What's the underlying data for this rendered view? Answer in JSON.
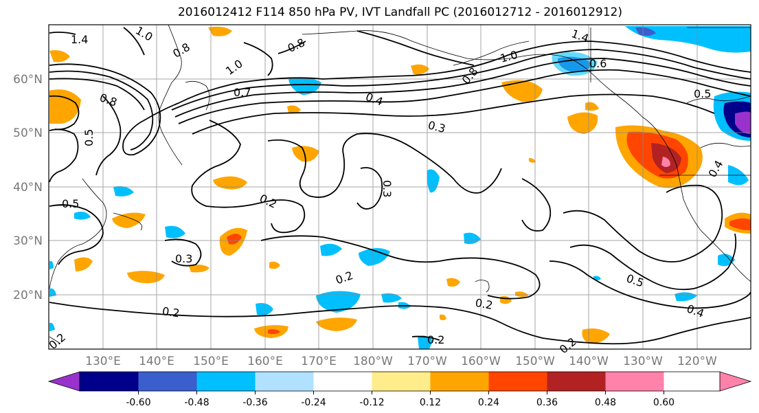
{
  "title": "2016012412 F114 850 hPa PV, IVT Landfall PC (2016012712 - 2016012912)",
  "lat_labels": [
    "60°N",
    "50°N",
    "40°N",
    "30°N",
    "20°N"
  ],
  "lon_labels": [
    "130°E",
    "140°E",
    "150°E",
    "160°E",
    "170°E",
    "180°W",
    "170°W",
    "160°W",
    "150°W",
    "140°W",
    "130°W",
    "120°W"
  ],
  "contour_labels": [
    "1.4",
    "1.0",
    "0.8",
    "0.8",
    "1.0",
    "0.7",
    "0.8",
    "0.5",
    "0.4",
    "0.3",
    "0.8",
    "1.0",
    "1.4",
    "0.6",
    "0.5",
    "0.3",
    "0.2",
    "0.5",
    "0.3",
    "0.2",
    "0.2",
    "0.2",
    "0.2",
    "0.5",
    "0.4",
    "0.4",
    "0.2",
    "0.2"
  ],
  "colorbar": {
    "colors": [
      "#9932cc",
      "#00008b",
      "#3a5fcd",
      "#00bfff",
      "#b0e2ff",
      "#ffffff",
      "#ffec8b",
      "#ffa500",
      "#ff4500",
      "#b22222",
      "#ff82ab"
    ],
    "tick_labels": [
      "-0.60",
      "-0.48",
      "-0.36",
      "-0.24",
      "-0.12",
      "0.12",
      "0.24",
      "0.36",
      "0.48",
      "0.60"
    ]
  }
}
